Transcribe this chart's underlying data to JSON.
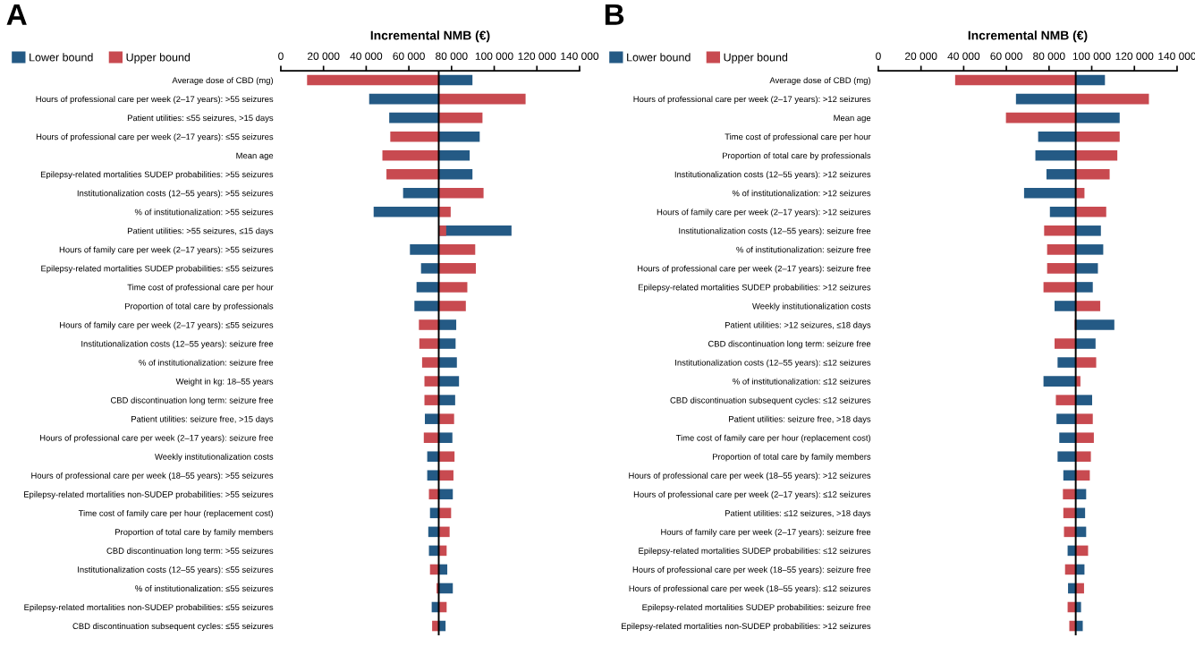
{
  "chart_data": [
    {
      "type": "bar",
      "title": "A",
      "xlabel": "Incremental NMB (€)",
      "orientation": "horizontal",
      "legend": "top left",
      "grid": false,
      "categories": [
        "Average dose of CBD (mg)",
        "Hours of professional care per week (2–17 years): >55 seizures",
        "Patient utilities: ≤55 seizures, >15 days",
        "Hours of professional care per week (2–17 years): ≤55 seizures",
        "Mean age",
        "Epilepsy-related mortalities SUDEP probabilities: >55 seizures",
        "Institutionalization costs (12–55 years): >55 seizures",
        "% of institutionalization: >55 seizures",
        "Patient utilities: >55 seizures, ≤15 days",
        "Hours of family care per week (2–17 years): >55 seizures",
        "Epilepsy-related mortalities SUDEP probabilities: ≤55 seizures",
        "Time cost of professional care per hour",
        "Proportion of total care by professionals",
        "Hours of family care per week (2–17 years): ≤55 seizures",
        "Institutionalization costs (12–55 years): seizure free",
        "% of institutionalization: seizure free",
        "Weight in kg: 18–55 years",
        "CBD discontinuation long term: seizure free",
        "Patient utilities: seizure free, >15 days",
        "Hours of professional care per week (2–17 years): seizure free",
        "Weekly institutionalization costs",
        "Hours of professional care per week (18–55 years): >55 seizures",
        "Epilepsy-related mortalities non-SUDEP probabilities: >55 seizures",
        "Time cost of family care per hour (replacement cost)",
        "Proportion of total care by family members",
        "CBD discontinuation long term: >55 seizures",
        "Institutionalization costs (12–55 years): ≤55 seizures",
        "% of institutionalization: ≤55 seizures",
        "Epilepsy-related mortalities non-SUDEP probabilities: ≤55 seizures",
        "CBD discontinuation subsequent cycles: ≤55 seizures"
      ],
      "series": [
        {
          "name": "Lower bound",
          "color": "#245a85",
          "base": [
            74000,
            74000,
            74000,
            74000,
            74000,
            74000,
            74000,
            74000,
            74000,
            74000,
            74000,
            74000,
            74000,
            74000,
            74000,
            74000,
            74000,
            74000,
            74000,
            74000,
            74000,
            74000,
            74000,
            74000,
            74000,
            74000,
            74000,
            74000,
            74000,
            74000
          ],
          "values": [
            15800,
            -32600,
            -23200,
            19200,
            14500,
            15800,
            -16700,
            -30500,
            34100,
            -13500,
            -8300,
            -10400,
            -11400,
            8200,
            7900,
            8500,
            9500,
            7700,
            -6500,
            6400,
            -5400,
            -5400,
            6600,
            -4100,
            -4900,
            -4600,
            4000,
            6600,
            -3300,
            3200
          ]
        },
        {
          "name": "Upper bound",
          "color": "#c84a50",
          "base": [
            74000,
            74000,
            74000,
            74000,
            74000,
            74000,
            74000,
            74000,
            74000,
            74000,
            74000,
            74000,
            74000,
            74000,
            74000,
            74000,
            74000,
            74000,
            74000,
            74000,
            74000,
            74000,
            74000,
            74000,
            74000,
            74000,
            74000,
            74000,
            74000,
            74000
          ],
          "values": [
            -61700,
            40700,
            20500,
            -22700,
            -26400,
            -24500,
            21000,
            5600,
            3500,
            17100,
            17400,
            13400,
            12700,
            -9300,
            -9100,
            -7800,
            -6700,
            -6700,
            7200,
            -7000,
            7400,
            6900,
            -4600,
            5800,
            5100,
            3700,
            -4100,
            -1000,
            3700,
            -3100
          ]
        }
      ],
      "xlim": [
        0,
        140000
      ],
      "xticks": [
        0,
        {
          "value": 20000,
          "label": "20 000"
        },
        {
          "value": 40000,
          "label": "40 000"
        },
        {
          "value": 60000,
          "label": "60 000"
        },
        {
          "value": 80000,
          "label": "80 000"
        },
        {
          "value": 100000,
          "label": "100 000"
        },
        {
          "value": 120000,
          "label": "120 000"
        },
        {
          "value": 140000,
          "label": "140 000"
        }
      ],
      "ref_lines": [
        {
          "axis": "x",
          "value": 74000,
          "color": "#000000"
        }
      ]
    },
    {
      "type": "bar",
      "title": "B",
      "xlabel": "Incremental NMB (€)",
      "orientation": "horizontal",
      "legend": "top left",
      "grid": false,
      "categories": [
        "Average dose of CBD (mg)",
        "Hours of professional care per week (2–17 years): >12 seizures",
        "Mean age",
        "Time cost of professional care per hour",
        "Proportion of total care by professionals",
        "Institutionalization costs (12–55 years): >12 seizures",
        "% of institutionalization: >12 seizures",
        "Hours of family care per week (2–17 years): >12 seizures",
        "Institutionalization costs (12–55 years): seizure free",
        "% of institutionalization: seizure free",
        "Hours of professional care per week (2–17 years): seizure free",
        "Epilepsy-related mortalities SUDEP probabilities: >12 seizures",
        "Weekly institutionalization costs",
        "Patient utilities: >12 seizures, ≤18 days",
        "CBD discontinuation long term: seizure free",
        "Institutionalization costs (12–55 years): ≤12 seizures",
        "% of institutionalization: ≤12 seizures",
        "CBD discontinuation subsequent cycles: ≤12 seizures",
        "Patient utilities: seizure free, >18 days",
        "Time cost of family care per hour (replacement cost)",
        "Proportion of total care by family members",
        "Hours of professional care per week (18–55 years): >12 seizures",
        "Hours of professional care per week (2–17 years): ≤12 seizures",
        "Patient utilities: ≤12 seizures, >18 days",
        "Hours of family care per week (2–17 years): seizure free",
        "Epilepsy-related mortalities SUDEP probabilities: ≤12 seizures",
        "Hours of professional care per week (18–55 years): seizure free",
        "Hours of professional care per week (18–55 years): ≤12 seizures",
        "Epilepsy-related mortalities SUDEP probabilities: seizure free",
        "Epilepsy-related mortalities non-SUDEP probabilities: >12 seizures"
      ],
      "series": [
        {
          "name": "Lower bound",
          "color": "#245a85",
          "base": [
            92500,
            92500,
            92500,
            92500,
            92500,
            92500,
            92500,
            92500,
            92500,
            92500,
            92500,
            92500,
            92500,
            92500,
            92500,
            92500,
            92500,
            92500,
            92500,
            92500,
            92500,
            92500,
            92500,
            92500,
            92500,
            92500,
            92500,
            92500,
            92500,
            92500
          ],
          "values": [
            13700,
            -28000,
            20600,
            -17600,
            -18900,
            -13700,
            -24200,
            -12100,
            11800,
            12900,
            10400,
            8000,
            -9900,
            18100,
            9300,
            -8500,
            -15100,
            7700,
            -9000,
            -7700,
            -8500,
            -5800,
            4900,
            4400,
            4900,
            -3800,
            4100,
            -3600,
            2500,
            3300
          ]
        },
        {
          "name": "Upper bound",
          "color": "#c84a50",
          "base": [
            92500,
            92500,
            92500,
            92500,
            92500,
            92500,
            92500,
            92500,
            92500,
            92500,
            92500,
            92500,
            92500,
            92500,
            92500,
            92500,
            92500,
            92500,
            92500,
            92500,
            92500,
            92500,
            92500,
            92500,
            92500,
            92500,
            92500,
            92500,
            92500,
            92500
          ],
          "values": [
            -56500,
            34300,
            -32700,
            20600,
            19500,
            15900,
            4100,
            14300,
            -14800,
            -13400,
            -13400,
            -15100,
            11500,
            -500,
            -9900,
            9600,
            2200,
            -9300,
            8000,
            8500,
            7100,
            6600,
            -6000,
            -5800,
            -5500,
            5800,
            -5000,
            3900,
            -3800,
            -3000
          ]
        }
      ],
      "xlim": [
        0,
        140000
      ],
      "xticks": [
        0,
        {
          "value": 20000,
          "label": "20 000"
        },
        {
          "value": 40000,
          "label": "40 000"
        },
        {
          "value": 60000,
          "label": "60 000"
        },
        {
          "value": 80000,
          "label": "80 000"
        },
        {
          "value": 100000,
          "label": "100 000"
        },
        {
          "value": 120000,
          "label": "120 000"
        },
        {
          "value": 140000,
          "label": "140 000"
        }
      ],
      "ref_lines": [
        {
          "axis": "x",
          "value": 92500,
          "color": "#000000"
        }
      ]
    }
  ]
}
